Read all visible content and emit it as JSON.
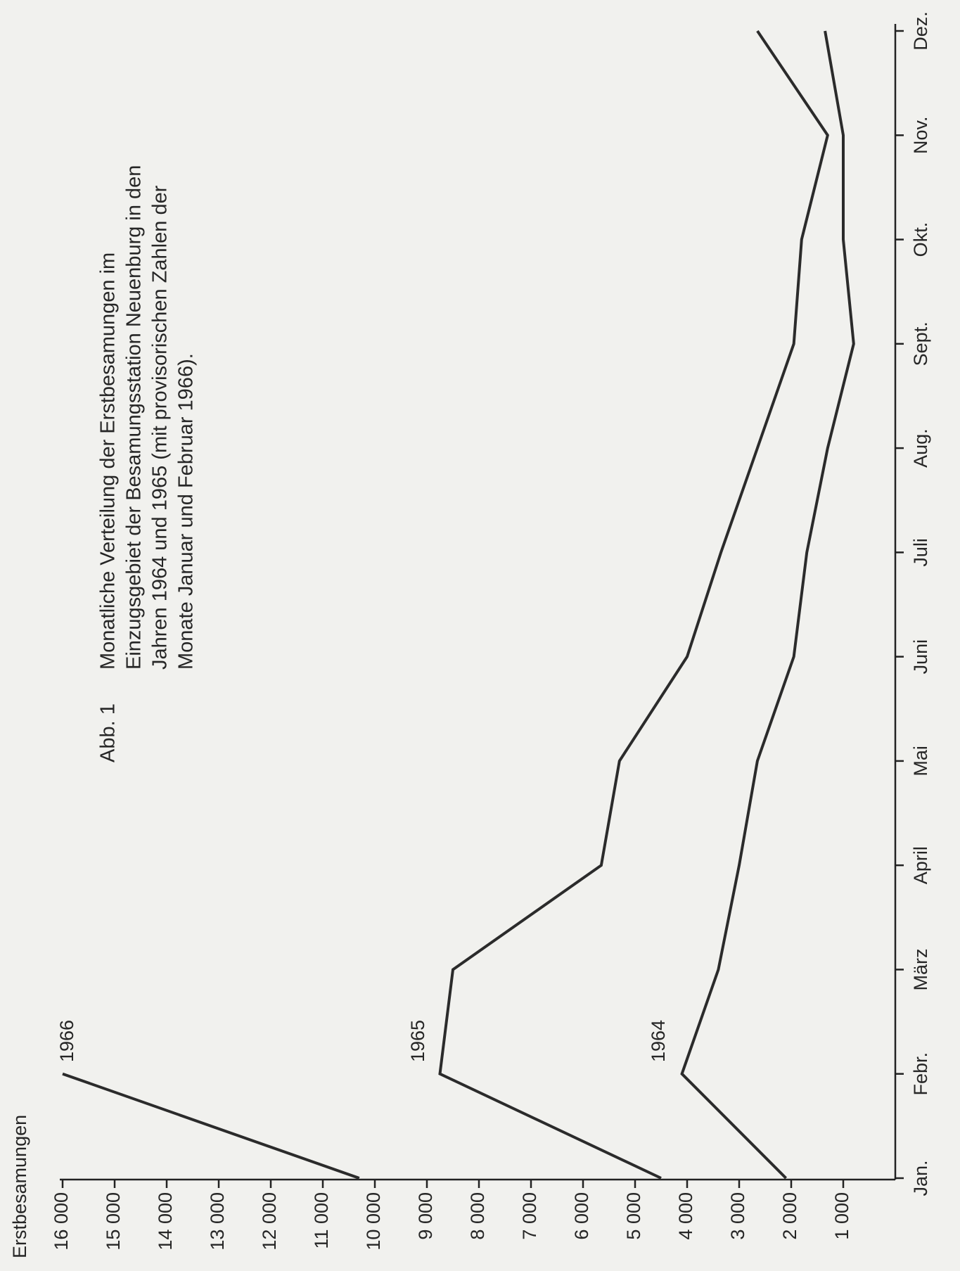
{
  "chart_data": {
    "type": "line",
    "title": "Abb. 1",
    "subtitle": [
      "Monatliche Verteilung der Erstbesamungen im",
      "Einzugsgebiet der Besamungsstation Neuenburg in den",
      "Jahren 1964 und 1965 (mit provisorischen Zahlen der",
      "Monate Januar und Februar 1966)."
    ],
    "y_label": "Erstbesamungen",
    "categories": [
      "Jan.",
      "Febr.",
      "März",
      "April",
      "Mai",
      "Juni",
      "Juli",
      "Aug.",
      "Sept.",
      "Okt.",
      "Nov.",
      "Dez."
    ],
    "series": [
      {
        "name": "1966",
        "color": "#2b2b2b",
        "values": [
          10300,
          16000,
          null,
          null,
          null,
          null,
          null,
          null,
          null,
          null,
          null,
          null
        ]
      },
      {
        "name": "1965",
        "color": "#2b2b2b",
        "values": [
          4500,
          8750,
          8500,
          5650,
          5300,
          4000,
          3350,
          2650,
          1950,
          1800,
          1300,
          2650
        ]
      },
      {
        "name": "1964",
        "color": "#2b2b2b",
        "values": [
          2100,
          4100,
          3400,
          3000,
          2650,
          1950,
          1700,
          1300,
          800,
          1000,
          1000,
          1350
        ]
      }
    ],
    "ylim": [
      0,
      16000
    ],
    "yticks": [
      {
        "value": 1000,
        "label": "1 000"
      },
      {
        "value": 2000,
        "label": "2 000"
      },
      {
        "value": 3000,
        "label": "3 000"
      },
      {
        "value": 4000,
        "label": "4 000"
      },
      {
        "value": 5000,
        "label": "5 000"
      },
      {
        "value": 6000,
        "label": "6 000"
      },
      {
        "value": 7000,
        "label": "7 000"
      },
      {
        "value": 8000,
        "label": "8 000"
      },
      {
        "value": 9000,
        "label": "9 000"
      },
      {
        "value": 10000,
        "label": "10 000"
      },
      {
        "value": 11000,
        "label": "11 000"
      },
      {
        "value": 12000,
        "label": "12 000"
      },
      {
        "value": 13000,
        "label": "13 000"
      },
      {
        "value": 14000,
        "label": "14 000"
      },
      {
        "value": 15000,
        "label": "15 000"
      },
      {
        "value": 16000,
        "label": "16 000"
      }
    ],
    "grid": false
  }
}
